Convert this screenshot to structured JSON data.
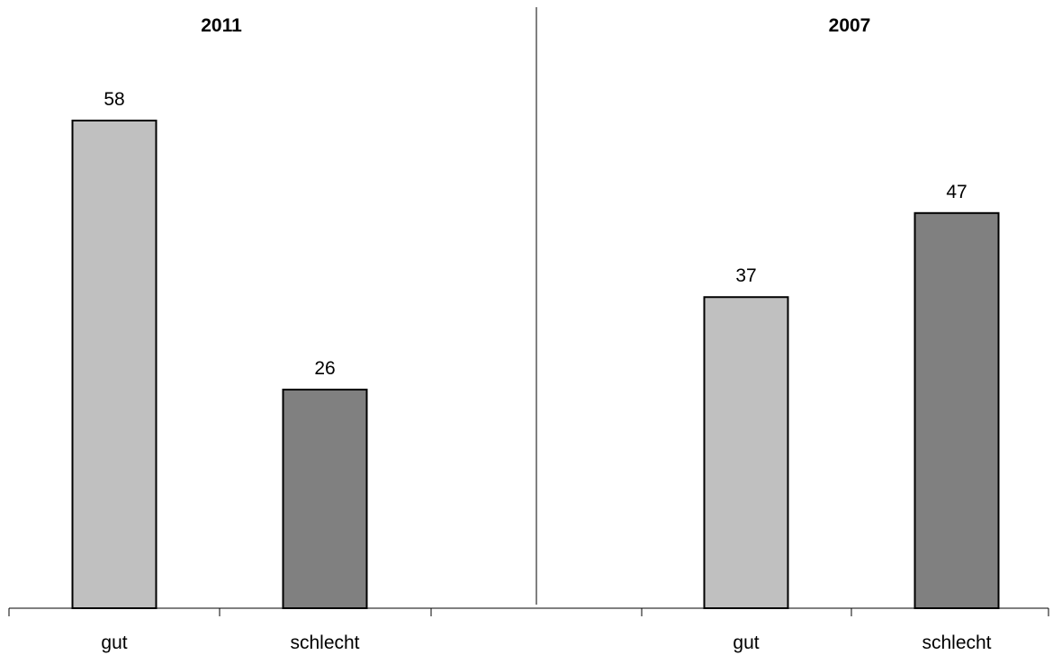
{
  "chart_data": [
    {
      "type": "bar",
      "title": "2011",
      "categories": [
        "gut",
        "schlecht"
      ],
      "values": [
        58,
        26
      ],
      "colors": [
        "#c0c0c0",
        "#808080"
      ],
      "ylim": [
        0,
        65
      ],
      "grid": false
    },
    {
      "type": "bar",
      "title": "2007",
      "categories": [
        "gut",
        "schlecht"
      ],
      "values": [
        37,
        47
      ],
      "colors": [
        "#c0c0c0",
        "#808080"
      ],
      "ylim": [
        0,
        65
      ],
      "grid": false
    }
  ]
}
